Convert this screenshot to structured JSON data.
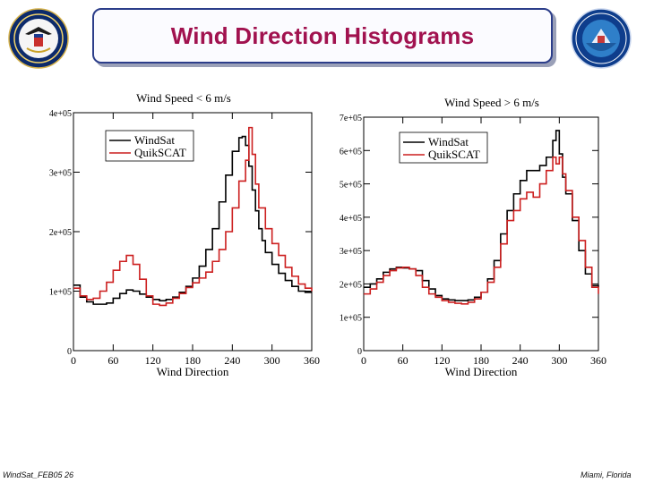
{
  "slide": {
    "title": "Wind Direction Histograms",
    "footer_left": "WindSat_FEB05 26",
    "footer_right": "Miami, Florida",
    "logo_left": "naval-research-seal",
    "logo_right": "windsat-mission-patch"
  },
  "colors": {
    "title": "#a1124f",
    "windsat": "#000000",
    "quikscat": "#cc1f1f",
    "frame": "#2c3e8a"
  },
  "chart_data": [
    {
      "type": "line",
      "title": "Wind Speed < 6 m/s",
      "xlabel": "Wind Direction",
      "ylabel": "",
      "xlim": [
        0,
        360
      ],
      "ylim": [
        0,
        400000
      ],
      "xticks": [
        0,
        60,
        120,
        180,
        240,
        300,
        360
      ],
      "yticks": [
        0,
        100000,
        200000,
        300000,
        400000
      ],
      "ytick_labels": [
        "0",
        "1e+05",
        "2e+05",
        "3e+05",
        "4e+05"
      ],
      "legend_position": "top-left",
      "grid": false,
      "series": [
        {
          "name": "WindSat",
          "color": "#000000",
          "x": [
            0,
            10,
            20,
            30,
            40,
            50,
            60,
            70,
            80,
            90,
            100,
            110,
            120,
            130,
            140,
            150,
            160,
            170,
            180,
            190,
            200,
            210,
            220,
            230,
            240,
            250,
            255,
            260,
            265,
            270,
            275,
            280,
            285,
            290,
            300,
            310,
            320,
            330,
            340,
            350,
            360
          ],
          "y": [
            110000,
            90000,
            82000,
            78000,
            78000,
            80000,
            88000,
            96000,
            102000,
            100000,
            95000,
            90000,
            86000,
            84000,
            86000,
            90000,
            98000,
            108000,
            122000,
            142000,
            170000,
            205000,
            250000,
            295000,
            335000,
            358000,
            360000,
            345000,
            310000,
            270000,
            235000,
            205000,
            185000,
            165000,
            145000,
            130000,
            118000,
            108000,
            100000,
            98000,
            98000
          ]
        },
        {
          "name": "QuikSCAT",
          "color": "#cc1f1f",
          "x": [
            0,
            10,
            20,
            30,
            40,
            50,
            60,
            70,
            80,
            90,
            100,
            110,
            120,
            130,
            140,
            150,
            160,
            170,
            180,
            190,
            200,
            210,
            220,
            230,
            240,
            250,
            260,
            265,
            270,
            275,
            280,
            290,
            300,
            310,
            320,
            330,
            340,
            350,
            360
          ],
          "y": [
            105000,
            92000,
            86000,
            88000,
            100000,
            115000,
            135000,
            150000,
            160000,
            145000,
            120000,
            92000,
            78000,
            76000,
            80000,
            88000,
            96000,
            106000,
            114000,
            122000,
            132000,
            150000,
            170000,
            200000,
            240000,
            285000,
            320000,
            375000,
            330000,
            280000,
            240000,
            205000,
            180000,
            160000,
            140000,
            125000,
            112000,
            105000,
            100000
          ]
        }
      ]
    },
    {
      "type": "line",
      "title": "Wind Speed > 6 m/s",
      "xlabel": "Wind Direction",
      "ylabel": "",
      "xlim": [
        0,
        360
      ],
      "ylim": [
        0,
        700000
      ],
      "xticks": [
        0,
        60,
        120,
        180,
        240,
        300,
        360
      ],
      "yticks": [
        0,
        100000,
        200000,
        300000,
        400000,
        500000,
        600000,
        700000
      ],
      "ytick_labels": [
        "0",
        "1e+05",
        "2e+05",
        "3e+05",
        "4e+05",
        "5e+05",
        "6e+05",
        "7e+05"
      ],
      "legend_position": "top-left",
      "grid": false,
      "series": [
        {
          "name": "WindSat",
          "color": "#000000",
          "x": [
            0,
            10,
            20,
            30,
            40,
            50,
            60,
            70,
            80,
            90,
            100,
            110,
            120,
            130,
            140,
            150,
            160,
            170,
            180,
            190,
            200,
            210,
            220,
            230,
            240,
            250,
            260,
            270,
            280,
            290,
            295,
            300,
            305,
            310,
            320,
            330,
            340,
            350,
            360
          ],
          "y": [
            190000,
            200000,
            215000,
            235000,
            245000,
            250000,
            248000,
            245000,
            240000,
            210000,
            185000,
            165000,
            155000,
            152000,
            150000,
            150000,
            152000,
            160000,
            175000,
            215000,
            270000,
            350000,
            420000,
            470000,
            510000,
            540000,
            540000,
            555000,
            580000,
            630000,
            660000,
            590000,
            520000,
            470000,
            390000,
            300000,
            230000,
            195000,
            190000
          ]
        },
        {
          "name": "QuikSCAT",
          "color": "#cc1f1f",
          "x": [
            0,
            10,
            20,
            30,
            40,
            50,
            60,
            70,
            80,
            90,
            100,
            110,
            120,
            130,
            140,
            150,
            160,
            170,
            180,
            190,
            200,
            210,
            220,
            230,
            240,
            250,
            260,
            270,
            280,
            290,
            295,
            300,
            305,
            310,
            320,
            330,
            340,
            350,
            360
          ],
          "y": [
            170000,
            185000,
            205000,
            225000,
            240000,
            248000,
            250000,
            245000,
            225000,
            190000,
            170000,
            160000,
            150000,
            145000,
            142000,
            140000,
            145000,
            155000,
            175000,
            205000,
            250000,
            320000,
            390000,
            420000,
            455000,
            475000,
            460000,
            500000,
            540000,
            580000,
            560000,
            580000,
            530000,
            480000,
            400000,
            330000,
            250000,
            190000,
            170000
          ]
        }
      ]
    }
  ]
}
